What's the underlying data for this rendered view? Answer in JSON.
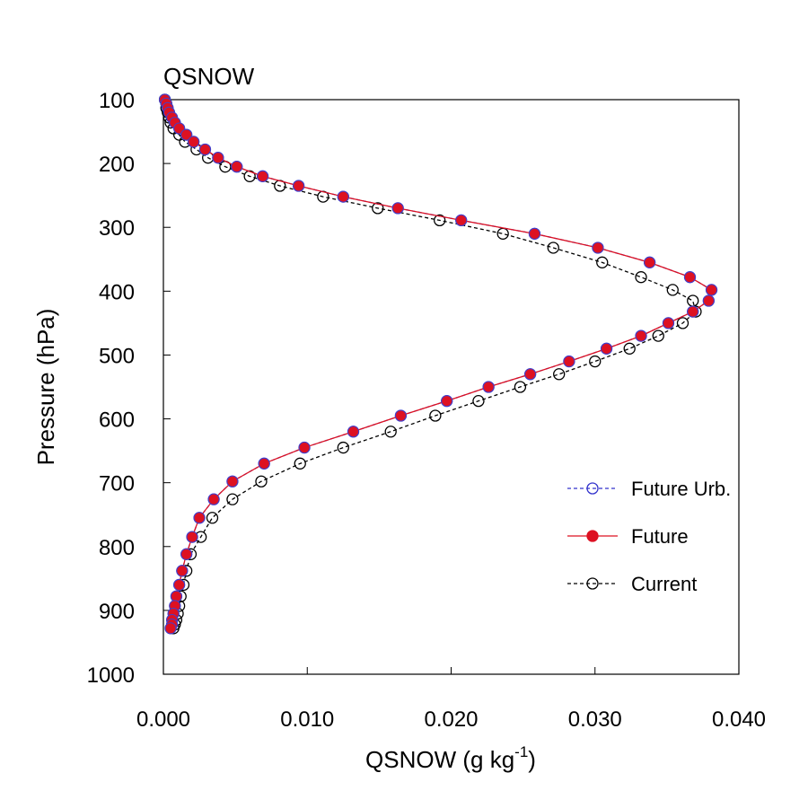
{
  "chart_data": {
    "type": "line",
    "title": "QSNOW",
    "xlabel": "QSNOW (g kg",
    "xlabel_superscript": "-1",
    "xlabel_suffix": ")",
    "ylabel": "Pressure (hPa)",
    "xlim": [
      0.0,
      0.04
    ],
    "ylim": [
      1000,
      100
    ],
    "y_inverted": true,
    "x_ticks": [
      0.0,
      0.01,
      0.02,
      0.03,
      0.04
    ],
    "x_tick_labels": [
      "0.000",
      "0.010",
      "0.020",
      "0.030",
      "0.040"
    ],
    "y_ticks": [
      100,
      200,
      300,
      400,
      500,
      600,
      700,
      800,
      900,
      1000
    ],
    "y_tick_labels": [
      "100",
      "200",
      "300",
      "400",
      "500",
      "600",
      "700",
      "800",
      "900",
      "1000"
    ],
    "grid": false,
    "legend_position": "bottom-right",
    "pressure": [
      100,
      106,
      113,
      120,
      128,
      136,
      145,
      155,
      166,
      178,
      191,
      205,
      220,
      235,
      252,
      270,
      289,
      310,
      332,
      355,
      378,
      398,
      415,
      432,
      450,
      470,
      490,
      510,
      530,
      550,
      572,
      595,
      620,
      645,
      670,
      698,
      726,
      755,
      785,
      812,
      838,
      860,
      878,
      893,
      905,
      915,
      922,
      928
    ],
    "series": [
      {
        "name": "Future Urb.",
        "color": "#3333cc",
        "line_style": "dashed",
        "marker": "open-circle",
        "values": [
          0.0001,
          0.0002,
          0.0003,
          0.0004,
          0.0006,
          0.0008,
          0.0011,
          0.0016,
          0.0021,
          0.0029,
          0.0038,
          0.0051,
          0.0069,
          0.0094,
          0.0125,
          0.0163,
          0.0207,
          0.0258,
          0.0302,
          0.0338,
          0.0366,
          0.0381,
          0.0379,
          0.0368,
          0.0351,
          0.0332,
          0.0308,
          0.0282,
          0.0255,
          0.0226,
          0.0197,
          0.0165,
          0.0132,
          0.0098,
          0.007,
          0.0048,
          0.0035,
          0.0025,
          0.002,
          0.0016,
          0.0013,
          0.0011,
          0.0009,
          0.0008,
          0.0007,
          0.0006,
          0.0006,
          0.0005
        ]
      },
      {
        "name": "Future",
        "color": "#dd1122",
        "line_style": "solid",
        "marker": "filled-circle",
        "values": [
          0.0001,
          0.0002,
          0.0003,
          0.0004,
          0.0006,
          0.0008,
          0.0011,
          0.0016,
          0.0021,
          0.0029,
          0.0038,
          0.0051,
          0.0069,
          0.0094,
          0.0125,
          0.0163,
          0.0207,
          0.0258,
          0.0302,
          0.0338,
          0.0366,
          0.0381,
          0.0379,
          0.0368,
          0.0351,
          0.0332,
          0.0308,
          0.0282,
          0.0255,
          0.0226,
          0.0197,
          0.0165,
          0.0132,
          0.0098,
          0.007,
          0.0048,
          0.0035,
          0.0025,
          0.002,
          0.0016,
          0.0013,
          0.0011,
          0.0009,
          0.0008,
          0.0007,
          0.0006,
          0.0006,
          0.0005
        ]
      },
      {
        "name": "Current",
        "color": "#000000",
        "line_style": "dashed",
        "marker": "open-circle",
        "values": [
          0.0001,
          0.0002,
          0.0002,
          0.0003,
          0.0004,
          0.0005,
          0.0007,
          0.0011,
          0.0015,
          0.0023,
          0.0031,
          0.0043,
          0.006,
          0.0081,
          0.0111,
          0.0149,
          0.0192,
          0.0236,
          0.0271,
          0.0305,
          0.0332,
          0.0354,
          0.0368,
          0.037,
          0.0361,
          0.0344,
          0.0324,
          0.03,
          0.0275,
          0.0248,
          0.0219,
          0.0189,
          0.0158,
          0.0125,
          0.0095,
          0.0068,
          0.0048,
          0.0034,
          0.0026,
          0.0019,
          0.0016,
          0.0014,
          0.0012,
          0.0011,
          0.001,
          0.0009,
          0.0008,
          0.0007
        ]
      }
    ]
  }
}
